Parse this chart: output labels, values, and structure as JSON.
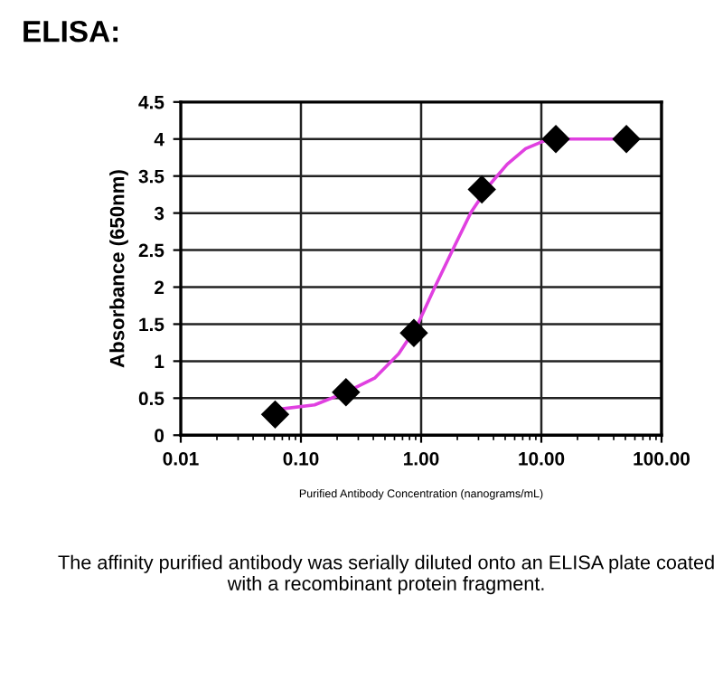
{
  "chart_data": {
    "type": "scatter",
    "title": "ELISA:",
    "xlabel": "Purified Antibody Concentration (nanograms/mL)",
    "ylabel": "Absorbance (650nm)",
    "log": "x",
    "xlim": [
      0.01,
      100
    ],
    "xticks": [
      {
        "value": 0.01,
        "label": "0.01"
      },
      {
        "value": 0.1,
        "label": "0.10"
      },
      {
        "value": 1,
        "label": "1.00"
      },
      {
        "value": 10,
        "label": "10.00"
      },
      {
        "value": 100,
        "label": "100.00"
      }
    ],
    "ylim": [
      0,
      4.5
    ],
    "yticks": [
      0,
      0.5,
      1,
      1.5,
      2,
      2.5,
      3,
      3.5,
      4,
      4.5
    ],
    "grid": true,
    "marker": "diamond",
    "series": [
      {
        "type": "line",
        "color": "#e040e0",
        "marker": "none",
        "x": [
          0.061,
          0.065,
          0.13,
          0.23,
          0.41,
          0.65,
          0.92,
          1.3,
          1.85,
          2.6,
          3.7,
          5.2,
          7.4,
          10.4,
          13.1,
          51
        ],
        "values": [
          0.32,
          0.35,
          0.41,
          0.57,
          0.77,
          1.1,
          1.47,
          2.0,
          2.52,
          3.01,
          3.38,
          3.66,
          3.87,
          3.97,
          4.0,
          4.0
        ]
      },
      {
        "color": "#000000",
        "x": [
          0.061,
          0.237,
          0.87,
          3.2,
          13.2,
          51
        ],
        "values": [
          0.28,
          0.58,
          1.38,
          3.32,
          4.0,
          4.0
        ]
      }
    ],
    "annotations": [
      "The affinity purified antibody was serially diluted onto an ELISA plate coated with a recombinant protein fragment."
    ]
  }
}
